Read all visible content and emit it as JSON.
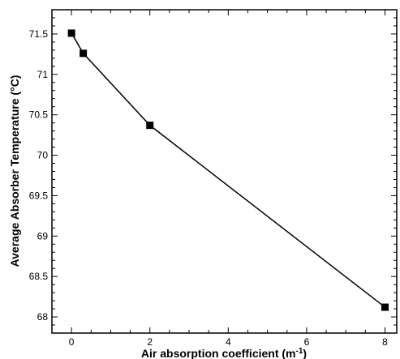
{
  "chart_data": {
    "type": "line",
    "xlabel": "Air absorption coefficient (m",
    "xlabel_sup": "-1",
    "xlabel_end": ")",
    "ylabel": "Average Absorber Temperature (°C)",
    "xlim": [
      -0.5,
      8.3
    ],
    "ylim": [
      67.8,
      71.8
    ],
    "x_ticks": [
      0,
      2,
      4,
      6,
      8
    ],
    "x_tick_labels": [
      "0",
      "2",
      "4",
      "6",
      "8"
    ],
    "y_ticks": [
      68,
      68.5,
      69,
      69.5,
      70,
      70.5,
      71,
      71.5
    ],
    "y_tick_labels": [
      "68",
      "68.5",
      "69",
      "69.5",
      "70",
      "70.5",
      "71",
      "71.5"
    ],
    "marker": "square",
    "grid": false,
    "series": [
      {
        "x": [
          0,
          0.3,
          2,
          8
        ],
        "y": [
          71.51,
          71.26,
          70.37,
          68.12
        ]
      }
    ]
  }
}
